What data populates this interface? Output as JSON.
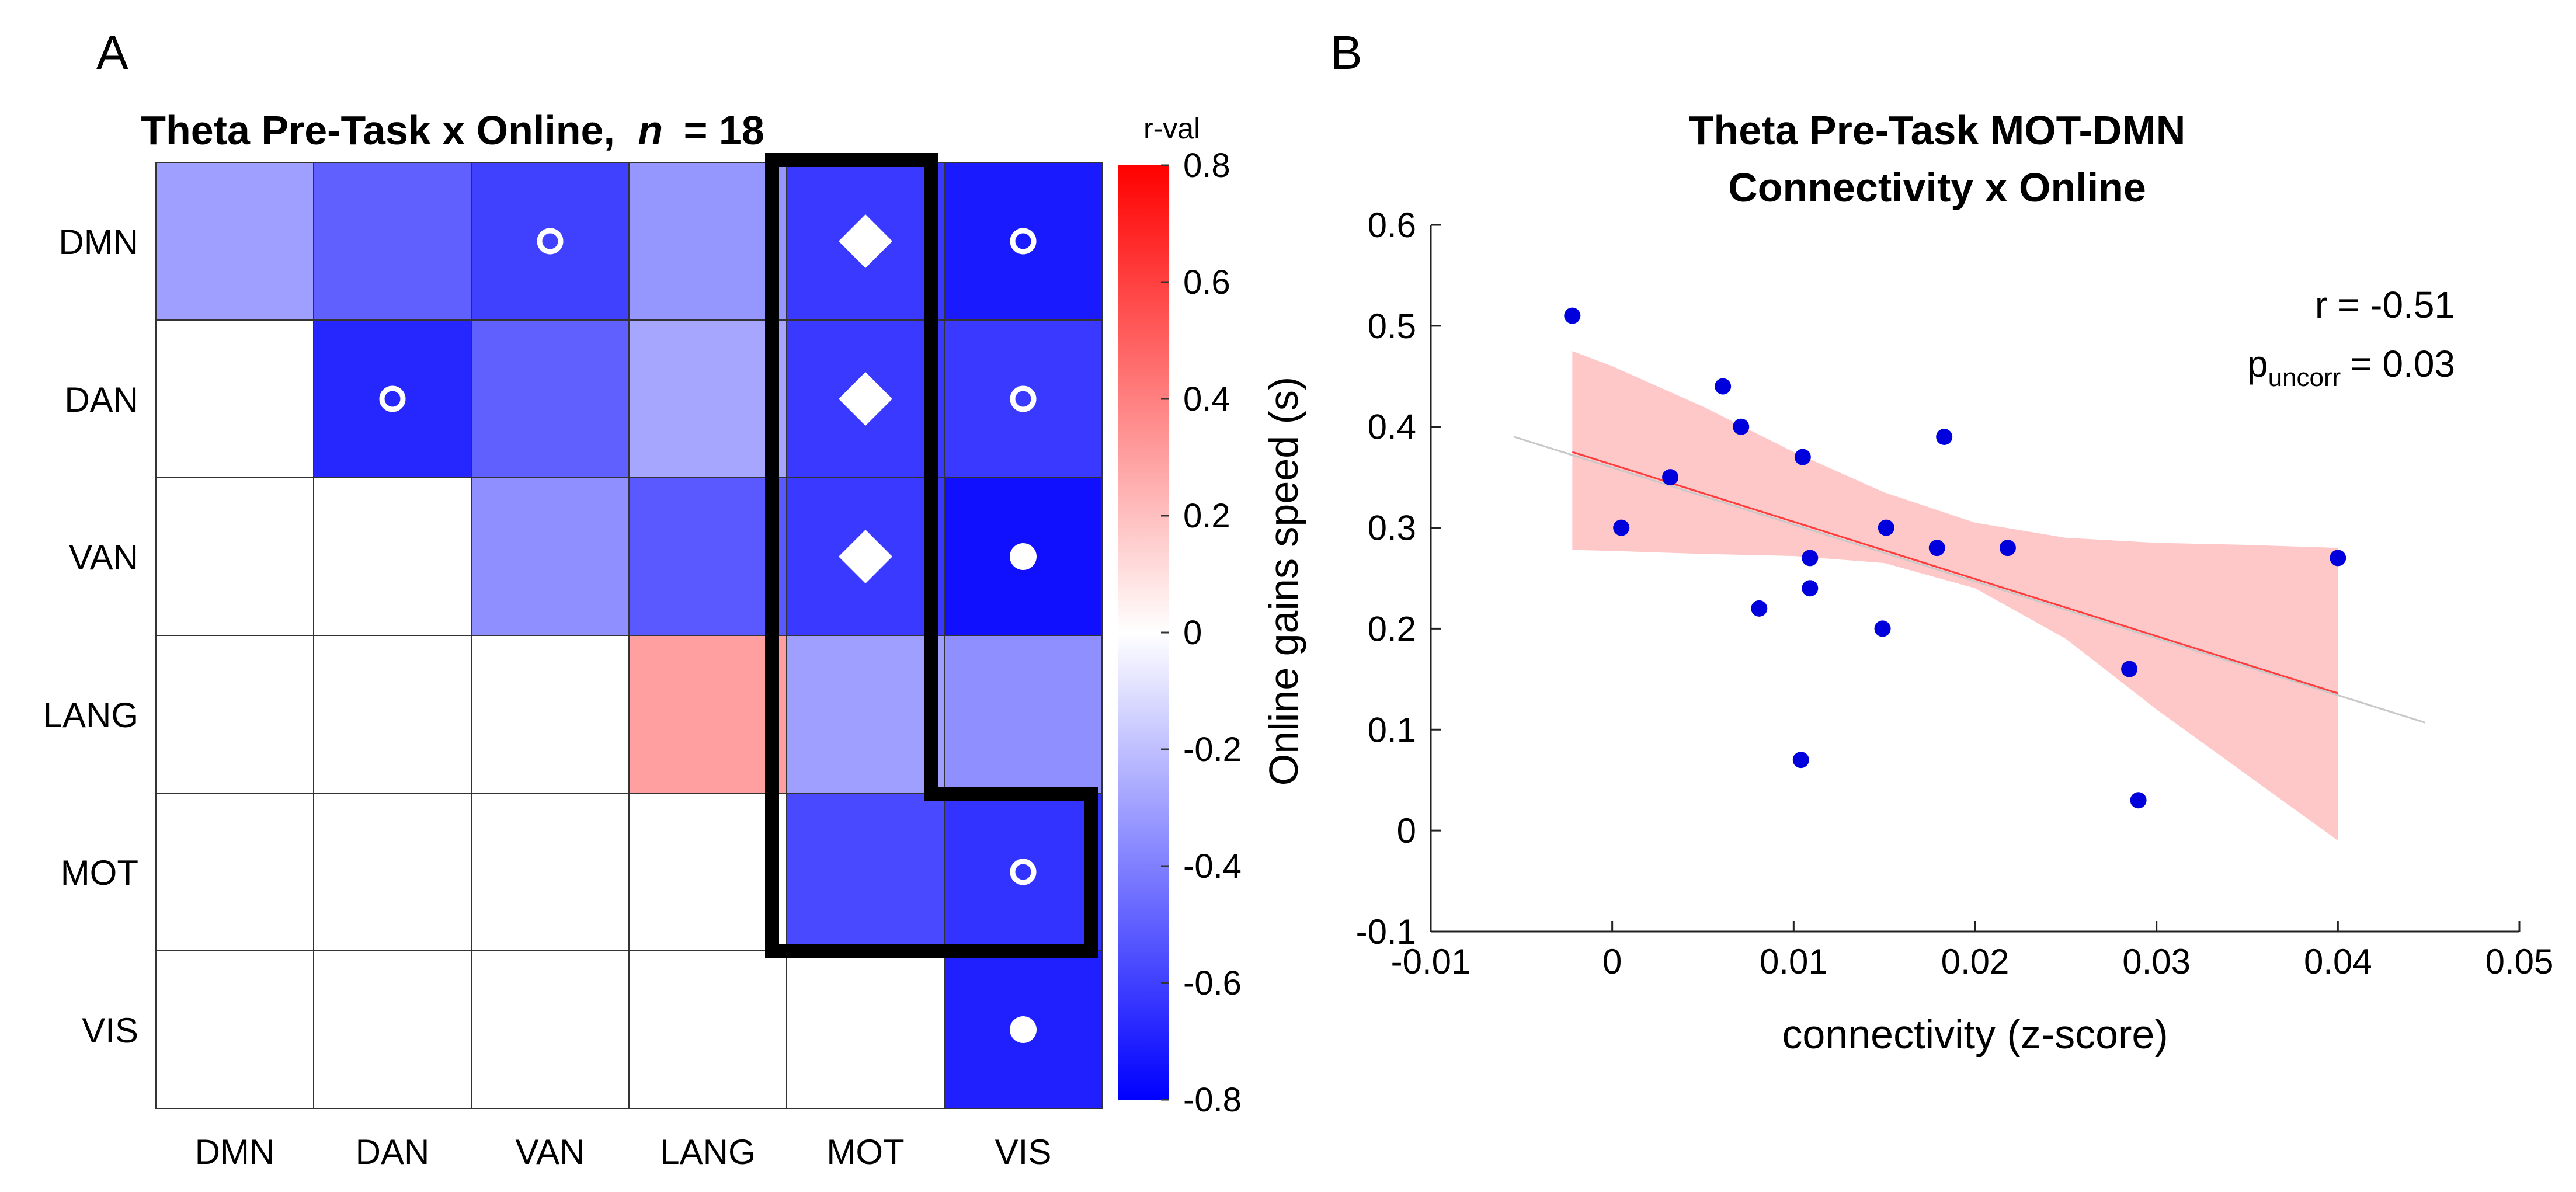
{
  "chart_data": [
    {
      "type": "heatmap",
      "panel_label": "A",
      "title": "Theta Pre-Task x Online,",
      "title_n_symbol": "n",
      "title_n_value": "= 18",
      "rows": [
        "DMN",
        "DAN",
        "VAN",
        "LANG",
        "MOT",
        "VIS"
      ],
      "columns": [
        "DMN",
        "DAN",
        "VAN",
        "LANG",
        "MOT",
        "VIS"
      ],
      "values": [
        [
          -0.3,
          -0.5,
          -0.6,
          -0.33,
          -0.62,
          -0.72
        ],
        [
          null,
          -0.68,
          -0.5,
          -0.28,
          -0.62,
          -0.62
        ],
        [
          null,
          null,
          -0.35,
          -0.52,
          -0.62,
          -0.75
        ],
        [
          null,
          null,
          null,
          0.3,
          -0.3,
          -0.35
        ],
        [
          null,
          null,
          null,
          null,
          -0.57,
          -0.64
        ],
        [
          null,
          null,
          null,
          null,
          null,
          -0.7
        ]
      ],
      "markers": [
        {
          "row": 0,
          "col": 2,
          "symbol": "open-circle"
        },
        {
          "row": 0,
          "col": 4,
          "symbol": "diamond"
        },
        {
          "row": 0,
          "col": 5,
          "symbol": "open-circle"
        },
        {
          "row": 1,
          "col": 1,
          "symbol": "open-circle"
        },
        {
          "row": 1,
          "col": 4,
          "symbol": "diamond"
        },
        {
          "row": 1,
          "col": 5,
          "symbol": "open-circle"
        },
        {
          "row": 2,
          "col": 4,
          "symbol": "diamond"
        },
        {
          "row": 2,
          "col": 5,
          "symbol": "filled-circle"
        },
        {
          "row": 4,
          "col": 5,
          "symbol": "open-circle"
        },
        {
          "row": 5,
          "col": 5,
          "symbol": "filled-circle"
        }
      ],
      "highlight": "MOT column and MOT row outlined with thick black border",
      "colorbar": {
        "label": "r-val",
        "range": [
          -0.8,
          0.8
        ],
        "ticks": [
          "0.8",
          "0.6",
          "0.4",
          "0.2",
          "0",
          "-0.2",
          "-0.4",
          "-0.6",
          "-0.8"
        ],
        "colors": {
          "low": "#0000ff",
          "mid": "#ffffff",
          "high": "#ff0000"
        }
      }
    },
    {
      "type": "scatter",
      "panel_label": "B",
      "title": [
        "Theta Pre-Task MOT-DMN",
        "Connectivity x Online"
      ],
      "xlabel": "connectivity (z-score)",
      "ylabel": "Online gains speed (s)",
      "xlim": [
        -0.01,
        0.05
      ],
      "ylim": [
        -0.1,
        0.6
      ],
      "xticks": [
        "-0.01",
        "0",
        "0.01",
        "0.02",
        "0.03",
        "0.04",
        "0.05"
      ],
      "yticks": [
        "-0.1",
        "0",
        "0.1",
        "0.2",
        "0.3",
        "0.4",
        "0.5",
        "0.6"
      ],
      "points": [
        {
          "x": -0.0022,
          "y": 0.51
        },
        {
          "x": 0.0005,
          "y": 0.3
        },
        {
          "x": 0.0032,
          "y": 0.35
        },
        {
          "x": 0.0061,
          "y": 0.44
        },
        {
          "x": 0.0071,
          "y": 0.4
        },
        {
          "x": 0.0081,
          "y": 0.22
        },
        {
          "x": 0.0104,
          "y": 0.07
        },
        {
          "x": 0.0105,
          "y": 0.37
        },
        {
          "x": 0.0109,
          "y": 0.27
        },
        {
          "x": 0.0109,
          "y": 0.24
        },
        {
          "x": 0.0149,
          "y": 0.2
        },
        {
          "x": 0.0151,
          "y": 0.3
        },
        {
          "x": 0.0179,
          "y": 0.28
        },
        {
          "x": 0.0183,
          "y": 0.39
        },
        {
          "x": 0.0218,
          "y": 0.28
        },
        {
          "x": 0.0285,
          "y": 0.16
        },
        {
          "x": 0.029,
          "y": 0.03
        },
        {
          "x": 0.04,
          "y": 0.27
        }
      ],
      "fit_line": {
        "x": [
          -0.0022,
          0.04
        ],
        "y": [
          0.375,
          0.136
        ]
      },
      "extended_line": {
        "x": [
          -0.0054,
          0.0448
        ],
        "y": [
          0.39,
          0.107
        ]
      },
      "confidence_band": {
        "x": [
          -0.0022,
          0.0,
          0.005,
          0.01,
          0.015,
          0.02,
          0.025,
          0.03,
          0.035,
          0.04
        ],
        "upper": [
          0.475,
          0.46,
          0.42,
          0.375,
          0.335,
          0.305,
          0.29,
          0.285,
          0.283,
          0.28
        ],
        "lower": [
          0.278,
          0.277,
          0.274,
          0.272,
          0.265,
          0.24,
          0.19,
          0.12,
          0.055,
          -0.01
        ]
      },
      "stats": {
        "r_text": "r = -0.51",
        "p_symbol": "p",
        "p_subscript": "uncorr",
        "p_value": "= 0.03"
      },
      "colors": {
        "points": "#0000dd",
        "fit_line": "#ff3b3b",
        "band": "#ffc8c8",
        "extended_line": "#c8c8c8"
      }
    }
  ]
}
